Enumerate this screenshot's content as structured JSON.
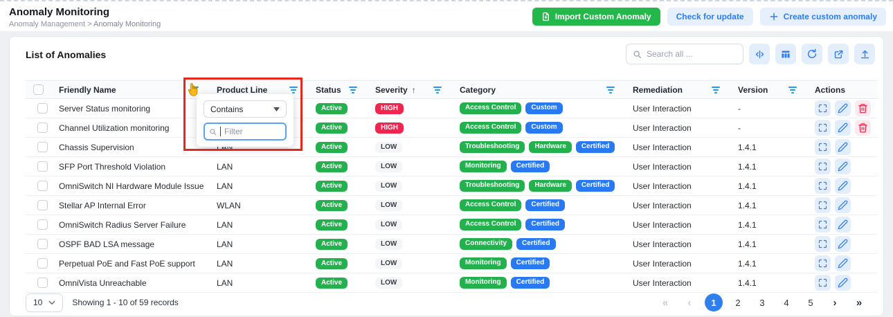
{
  "page": {
    "title": "Anomaly Monitoring",
    "breadcrumb": {
      "parent": "Anomaly Management",
      "separator": ">",
      "current": "Anomaly Monitoring"
    }
  },
  "header_buttons": {
    "import": "Import Custom Anomaly",
    "check_update": "Check for update",
    "create": "Create custom anomaly"
  },
  "panel": {
    "title": "List of Anomalies",
    "search_placeholder": "Search all ...",
    "tool_icons": [
      "column-resize",
      "table-columns",
      "refresh",
      "export",
      "upload"
    ]
  },
  "filter_popup": {
    "operator": "Contains",
    "filter_placeholder": "Filter"
  },
  "table": {
    "columns": [
      {
        "label": "Friendly Name",
        "filter": true
      },
      {
        "label": "Product Line",
        "filter": true
      },
      {
        "label": "Status",
        "filter": true
      },
      {
        "label": "Severity",
        "filter": true,
        "sorted": "asc",
        "sort_glyph": "↑"
      },
      {
        "label": "Category",
        "filter": true
      },
      {
        "label": "Remediation",
        "filter": true
      },
      {
        "label": "Version",
        "filter": true
      },
      {
        "label": "Actions",
        "filter": false
      }
    ],
    "rows": [
      {
        "friendly_name": "Server Status monitoring",
        "product_line": "",
        "status": "Active",
        "severity": "HIGH",
        "categories": [
          {
            "label": "Access Control",
            "color": "green"
          },
          {
            "label": "Custom",
            "color": "blue"
          }
        ],
        "remediation": "User Interaction",
        "version": "-",
        "can_delete": true
      },
      {
        "friendly_name": "Channel Utilization monitoring",
        "product_line": "",
        "status": "Active",
        "severity": "HIGH",
        "categories": [
          {
            "label": "Access Control",
            "color": "green"
          },
          {
            "label": "Custom",
            "color": "blue"
          }
        ],
        "remediation": "User Interaction",
        "version": "-",
        "can_delete": true
      },
      {
        "friendly_name": "Chassis Supervision",
        "product_line": "LAN",
        "status": "Active",
        "severity": "LOW",
        "categories": [
          {
            "label": "Troubleshooting",
            "color": "green"
          },
          {
            "label": "Hardware",
            "color": "green"
          },
          {
            "label": "Certified",
            "color": "blue"
          }
        ],
        "remediation": "User Interaction",
        "version": "1.4.1",
        "can_delete": false
      },
      {
        "friendly_name": "SFP Port Threshold Violation",
        "product_line": "LAN",
        "status": "Active",
        "severity": "LOW",
        "categories": [
          {
            "label": "Monitoring",
            "color": "green"
          },
          {
            "label": "Certified",
            "color": "blue"
          }
        ],
        "remediation": "User Interaction",
        "version": "1.4.1",
        "can_delete": false
      },
      {
        "friendly_name": "OmniSwitch NI Hardware Module Issue",
        "product_line": "LAN",
        "status": "Active",
        "severity": "LOW",
        "categories": [
          {
            "label": "Troubleshooting",
            "color": "green"
          },
          {
            "label": "Hardware",
            "color": "green"
          },
          {
            "label": "Certified",
            "color": "blue"
          }
        ],
        "remediation": "User Interaction",
        "version": "1.4.1",
        "can_delete": false
      },
      {
        "friendly_name": "Stellar AP Internal Error",
        "product_line": "WLAN",
        "status": "Active",
        "severity": "LOW",
        "categories": [
          {
            "label": "Access Control",
            "color": "green"
          },
          {
            "label": "Certified",
            "color": "blue"
          }
        ],
        "remediation": "User Interaction",
        "version": "1.4.1",
        "can_delete": false
      },
      {
        "friendly_name": "OmniSwitch Radius Server Failure",
        "product_line": "LAN",
        "status": "Active",
        "severity": "LOW",
        "categories": [
          {
            "label": "Access Control",
            "color": "green"
          },
          {
            "label": "Certified",
            "color": "blue"
          }
        ],
        "remediation": "User Interaction",
        "version": "1.4.1",
        "can_delete": false
      },
      {
        "friendly_name": "OSPF BAD LSA message",
        "product_line": "LAN",
        "status": "Active",
        "severity": "LOW",
        "categories": [
          {
            "label": "Connectivity",
            "color": "green"
          },
          {
            "label": "Certified",
            "color": "blue"
          }
        ],
        "remediation": "User Interaction",
        "version": "1.4.1",
        "can_delete": false
      },
      {
        "friendly_name": "Perpetual PoE and Fast PoE support",
        "product_line": "LAN",
        "status": "Active",
        "severity": "LOW",
        "categories": [
          {
            "label": "Monitoring",
            "color": "green"
          },
          {
            "label": "Certified",
            "color": "blue"
          }
        ],
        "remediation": "User Interaction",
        "version": "1.4.1",
        "can_delete": false
      },
      {
        "friendly_name": "OmniVista Unreachable",
        "product_line": "LAN",
        "status": "Active",
        "severity": "LOW",
        "categories": [
          {
            "label": "Monitoring",
            "color": "green"
          },
          {
            "label": "Certified",
            "color": "blue"
          }
        ],
        "remediation": "User Interaction",
        "version": "1.4.1",
        "can_delete": false
      }
    ]
  },
  "footer": {
    "page_size": "10",
    "showing": "Showing 1 - 10 of 59 records",
    "pagination": {
      "first": "«",
      "prev": "‹",
      "pages": [
        "1",
        "2",
        "3",
        "4",
        "5"
      ],
      "active": "1",
      "next": "›",
      "last": "»"
    }
  },
  "colors": {
    "accent_blue": "#2e7cf6",
    "green": "#23b14d",
    "badge_blue": "#2979f2",
    "red": "#f1264e",
    "annotation_red": "#e5281b",
    "light_blue_bg": "#e6f0fd",
    "button_green": "#24b84a"
  }
}
